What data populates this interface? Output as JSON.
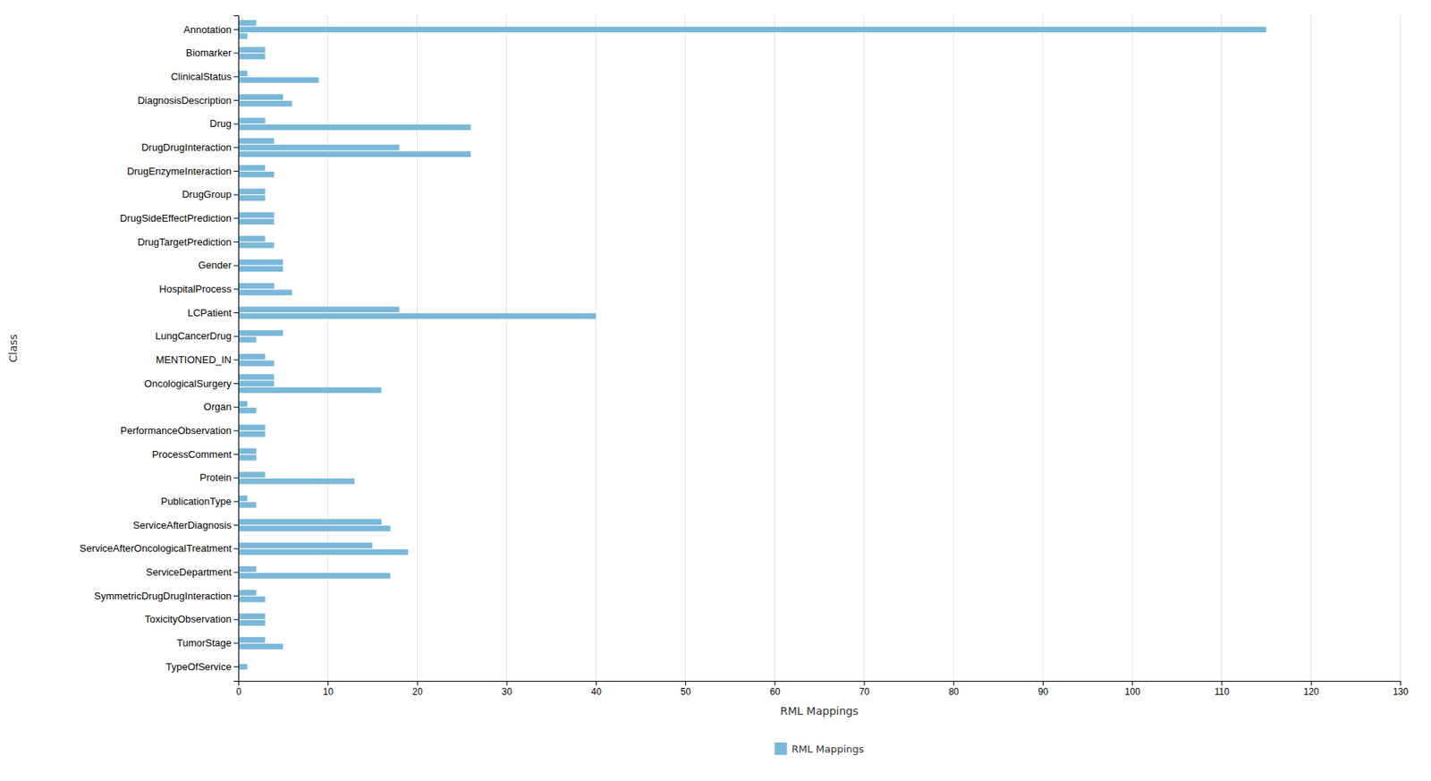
{
  "chart_data": {
    "type": "bar",
    "orientation": "horizontal",
    "xlabel": "RML Mappings",
    "ylabel": "Class",
    "categories": [
      "Annotation",
      "Biomarker",
      "ClinicalStatus",
      "DiagnosisDescription",
      "Drug",
      "DrugDrugInteraction",
      "DrugEnzymeInteraction",
      "DrugGroup",
      "DrugSideEffectPrediction",
      "DrugTargetPrediction",
      "Gender",
      "HospitalProcess",
      "LCPatient",
      "LungCancerDrug",
      "MENTIONED_IN",
      "OncologicalSurgery",
      "Organ",
      "PerformanceObservation",
      "ProcessComment",
      "Protein",
      "PublicationType",
      "ServiceAfterDiagnosis",
      "ServiceAfterOncologicalTreatment",
      "ServiceDepartment",
      "SymmetricDrugDrugInteraction",
      "ToxicityObservation",
      "TumorStage",
      "TypeOfService"
    ],
    "series": [
      {
        "name": "RML Mappings",
        "color": "#7ab8d9",
        "values": [
          [
            2,
            115,
            1
          ],
          [
            3,
            3,
            0
          ],
          [
            1,
            9,
            0
          ],
          [
            5,
            6,
            0
          ],
          [
            3,
            26,
            0
          ],
          [
            4,
            18,
            26
          ],
          [
            3,
            4,
            0
          ],
          [
            3,
            3,
            0
          ],
          [
            4,
            4,
            0
          ],
          [
            3,
            4,
            0
          ],
          [
            5,
            5,
            0
          ],
          [
            4,
            6,
            0
          ],
          [
            18,
            40,
            0
          ],
          [
            5,
            2,
            0
          ],
          [
            3,
            4,
            0
          ],
          [
            4,
            4,
            16
          ],
          [
            1,
            2,
            0
          ],
          [
            3,
            3,
            0
          ],
          [
            2,
            2,
            0
          ],
          [
            3,
            13,
            0
          ],
          [
            1,
            2,
            0
          ],
          [
            16,
            17,
            0
          ],
          [
            15,
            19,
            0
          ],
          [
            2,
            17,
            0
          ],
          [
            2,
            3,
            0
          ],
          [
            3,
            3,
            0
          ],
          [
            3,
            5,
            0
          ],
          [
            1,
            0,
            0
          ]
        ]
      }
    ],
    "xlim": [
      0,
      130
    ],
    "xticks": [
      0,
      10,
      20,
      30,
      40,
      50,
      60,
      70,
      80,
      90,
      100,
      110,
      120,
      130
    ],
    "grid": true,
    "legend": "bottom"
  }
}
